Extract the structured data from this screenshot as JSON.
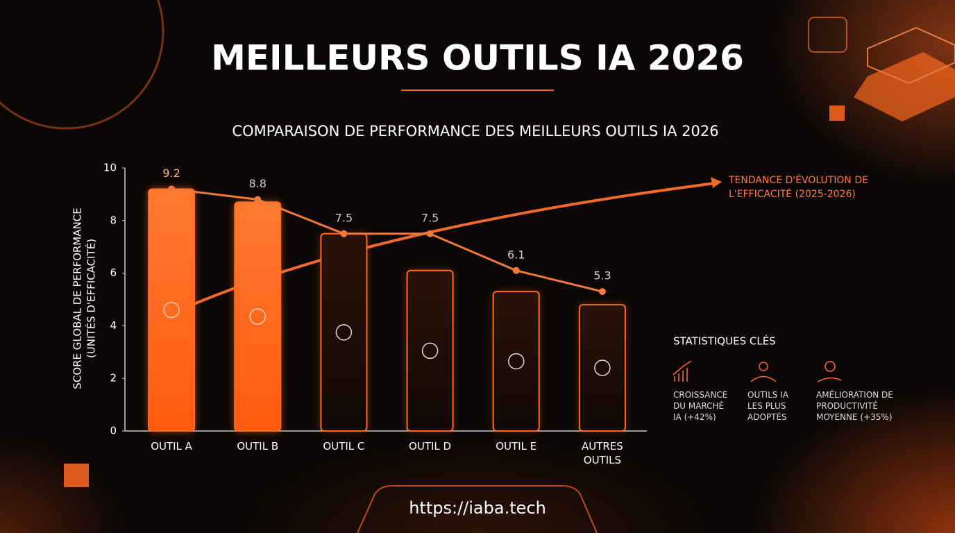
{
  "chart_data": {
    "type": "bar-line",
    "title": "MEILLEURS OUTILS IA 2026",
    "subtitle": "COMPARAISON DE PERFORMANCE DES MEILLEURS OUTILS IA 2026",
    "y_label": [
      "SCORE GLOBAL DE PERFORMANCE",
      "(UNITÉS D'EFFICACITÉ)"
    ],
    "categories": [
      "OUTIL A",
      "OUTIL B",
      "OUTIL C",
      "OUTIL D",
      "OUTIL E",
      "AUTRES OUTILS"
    ],
    "series": [
      {
        "color": "#ff6a1f",
        "values": [
          9.2,
          8.7,
          7.5,
          6.1,
          5.3,
          4.8
        ]
      },
      {
        "color": "#f07a3c",
        "values": [
          9.2,
          8.8,
          7.5,
          7.5,
          6.1,
          5.3
        ]
      }
    ],
    "ylim": [
      0,
      10
    ],
    "yticks": [
      0,
      2,
      4,
      6,
      8,
      10
    ],
    "trend_annotation": "TENDANCE D'ÉVOLUTION DE L'EFFICACITÉ (2025-2026)",
    "stats": {
      "title": "STATISTIQUES CLÉS",
      "items": [
        "CROISSANCE DU MARCHÉ IA (+42%)",
        "OUTILS IA LES PLUS ADOPTÉS",
        "AMÉLIORATION DE PRODUCTIVITÉ MOYENNE (+35%)"
      ]
    },
    "footer": "https://iaba.tech"
  }
}
